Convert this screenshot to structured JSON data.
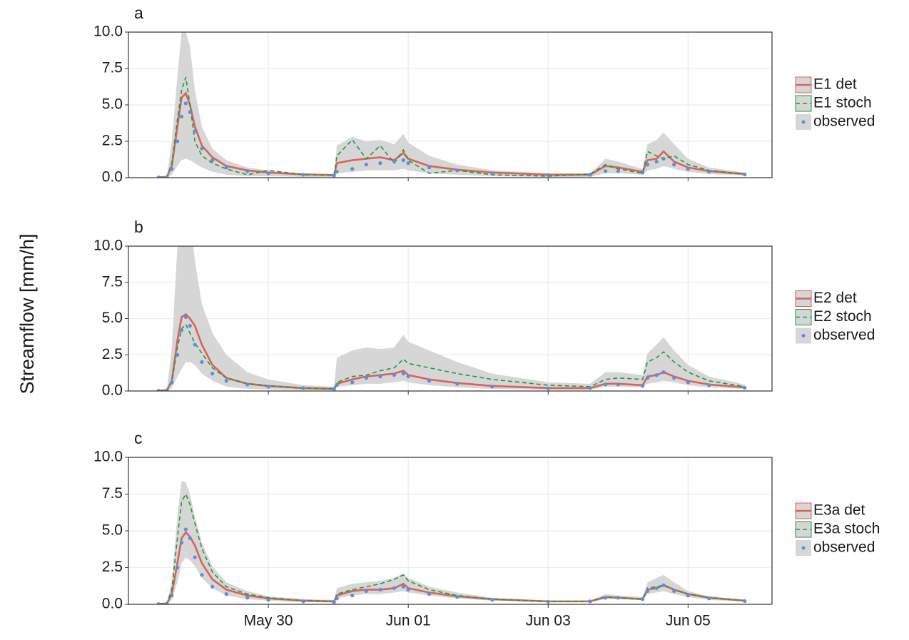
{
  "y_label": "Streamflow [mm/h]",
  "chart_data": [
    {
      "type": "line",
      "title": "a",
      "x": [
        0.43,
        0.55,
        0.62,
        0.7,
        0.76,
        0.82,
        0.88,
        0.95,
        1.05,
        1.2,
        1.4,
        1.7,
        2.0,
        2.5,
        2.94,
        2.98,
        3.2,
        3.4,
        3.6,
        3.8,
        3.93,
        4.0,
        4.3,
        4.7,
        5.2,
        6.0,
        6.6,
        6.82,
        7.0,
        7.35,
        7.42,
        7.55,
        7.65,
        7.8,
        8.0,
        8.3,
        8.81
      ],
      "xlim": [
        0,
        9.2
      ],
      "xticks": [
        2,
        4,
        6,
        8
      ],
      "ylim": [
        0,
        10
      ],
      "yticks": [
        {
          "value": 0,
          "label": "0.0"
        },
        2.5,
        {
          "value": 5,
          "label": "5.0"
        },
        7.5,
        {
          "value": 10,
          "label": "10.0"
        }
      ],
      "grid": true,
      "band": {
        "color": "#d6d6d6",
        "lower": [
          0,
          0,
          0.2,
          0.8,
          1.2,
          1.3,
          1.2,
          1.0,
          0.7,
          0.4,
          0.2,
          0.1,
          0.1,
          0.05,
          0.05,
          0.3,
          0.4,
          0.5,
          0.5,
          0.5,
          0.6,
          0.5,
          0.3,
          0.2,
          0.1,
          0.05,
          0.05,
          0.3,
          0.3,
          0.2,
          0.5,
          0.6,
          0.8,
          0.6,
          0.4,
          0.25,
          0.15
        ],
        "upper": [
          0.05,
          0.1,
          2.5,
          7,
          10,
          10,
          9,
          6,
          3.5,
          2.0,
          1.2,
          0.7,
          0.5,
          0.3,
          0.25,
          2.2,
          2.8,
          2.5,
          2.6,
          2.3,
          3.0,
          2.4,
          1.5,
          0.9,
          0.5,
          0.3,
          0.3,
          1.3,
          1.1,
          0.6,
          2.3,
          2.6,
          3.1,
          2.3,
          1.3,
          0.7,
          0.35
        ]
      },
      "series": [
        {
          "name": "E1 det",
          "color": "#d9625a",
          "style": "solid",
          "values": [
            0.02,
            0.05,
            0.8,
            3.5,
            5.5,
            5.8,
            5.0,
            3.5,
            2.2,
            1.4,
            0.8,
            0.5,
            0.35,
            0.22,
            0.18,
            1.0,
            1.2,
            1.3,
            1.4,
            1.2,
            1.7,
            1.3,
            0.8,
            0.55,
            0.35,
            0.2,
            0.2,
            0.8,
            0.7,
            0.4,
            1.2,
            1.3,
            1.8,
            1.1,
            0.7,
            0.45,
            0.25
          ]
        },
        {
          "name": "E1 stoch",
          "color": "#1f9a3c",
          "style": "dashed",
          "values": [
            0.02,
            0.05,
            1.0,
            4.0,
            6.0,
            6.9,
            5.0,
            2.5,
            1.5,
            1.0,
            0.6,
            0.2,
            0.5,
            0.2,
            0.15,
            1.5,
            2.6,
            1.3,
            2.2,
            1.0,
            1.9,
            1.2,
            0.3,
            0.5,
            0.2,
            0.1,
            0.25,
            0.9,
            0.6,
            0.3,
            1.8,
            1.5,
            1.3,
            1.5,
            0.9,
            0.5,
            0.25
          ]
        },
        {
          "name": "observed",
          "color": "#5b8de0",
          "style": "points",
          "values": [
            0.02,
            0.05,
            0.6,
            2.5,
            4.2,
            5.1,
            4.5,
            3.2,
            2.0,
            1.2,
            0.7,
            0.45,
            0.3,
            0.2,
            0.15,
            0.4,
            0.6,
            0.9,
            1.0,
            1.1,
            1.2,
            1.0,
            0.7,
            0.5,
            0.3,
            0.18,
            0.2,
            0.45,
            0.45,
            0.35,
            0.9,
            1.1,
            1.3,
            0.9,
            0.6,
            0.4,
            0.22
          ]
        }
      ]
    },
    {
      "type": "line",
      "title": "b",
      "x": [
        0.43,
        0.55,
        0.62,
        0.7,
        0.76,
        0.82,
        0.88,
        0.95,
        1.05,
        1.2,
        1.4,
        1.7,
        2.0,
        2.5,
        2.94,
        2.98,
        3.2,
        3.4,
        3.6,
        3.8,
        3.93,
        4.0,
        4.3,
        4.7,
        5.2,
        6.0,
        6.6,
        6.82,
        7.0,
        7.35,
        7.42,
        7.55,
        7.65,
        7.8,
        8.0,
        8.3,
        8.81
      ],
      "xlim": [
        0,
        9.2
      ],
      "xticks": [
        2,
        4,
        6,
        8
      ],
      "ylim": [
        0,
        10
      ],
      "yticks": [
        {
          "value": 0,
          "label": "0.0"
        },
        2.5,
        {
          "value": 5,
          "label": "5.0"
        },
        7.5,
        {
          "value": 10,
          "label": "10.0"
        }
      ],
      "grid": true,
      "band": {
        "color": "#d6d6d6",
        "lower": [
          0,
          0,
          0.2,
          1.0,
          1.5,
          2.0,
          2.0,
          1.8,
          1.2,
          0.7,
          0.3,
          0.15,
          0.1,
          0.05,
          0.05,
          0.3,
          0.4,
          0.5,
          0.5,
          0.6,
          0.7,
          0.6,
          0.4,
          0.25,
          0.15,
          0.08,
          0.08,
          0.3,
          0.3,
          0.25,
          0.5,
          0.6,
          0.7,
          0.6,
          0.4,
          0.25,
          0.15
        ],
        "upper": [
          0.05,
          0.1,
          3,
          10,
          14,
          14,
          12,
          9,
          6,
          4,
          2.5,
          1.3,
          0.8,
          0.4,
          0.3,
          2.3,
          2.8,
          3.0,
          2.9,
          3.0,
          3.9,
          3.4,
          2.8,
          2.0,
          1.2,
          0.6,
          0.5,
          1.3,
          1.3,
          1.1,
          2.6,
          3.2,
          3.7,
          2.8,
          1.8,
          1.0,
          0.45
        ]
      },
      "series": [
        {
          "name": "E2 det",
          "color": "#d9625a",
          "style": "solid",
          "values": [
            0.02,
            0.05,
            0.7,
            3.5,
            5.1,
            5.3,
            5.0,
            4.5,
            3.2,
            1.8,
            0.9,
            0.5,
            0.35,
            0.2,
            0.15,
            0.5,
            0.8,
            1.0,
            1.1,
            1.2,
            1.4,
            1.1,
            0.8,
            0.55,
            0.35,
            0.2,
            0.2,
            0.5,
            0.5,
            0.4,
            1.0,
            1.1,
            1.3,
            1.0,
            0.7,
            0.45,
            0.25
          ]
        },
        {
          "name": "E2 stoch",
          "color": "#1f9a3c",
          "style": "dashed",
          "values": [
            0.02,
            0.05,
            0.6,
            3.0,
            4.3,
            4.6,
            4.0,
            3.3,
            2.6,
            1.6,
            0.9,
            0.5,
            0.35,
            0.2,
            0.15,
            0.6,
            1.0,
            1.1,
            1.4,
            1.6,
            2.2,
            1.9,
            1.6,
            1.2,
            0.8,
            0.4,
            0.3,
            0.8,
            0.9,
            0.8,
            2.0,
            2.3,
            2.7,
            2.0,
            1.3,
            0.7,
            0.3
          ]
        },
        {
          "name": "observed",
          "color": "#5b8de0",
          "style": "points",
          "values": [
            0.02,
            0.05,
            0.6,
            2.5,
            4.2,
            5.1,
            4.5,
            3.2,
            2.0,
            1.2,
            0.7,
            0.45,
            0.3,
            0.2,
            0.15,
            0.4,
            0.6,
            0.9,
            1.0,
            1.1,
            1.2,
            1.0,
            0.7,
            0.5,
            0.3,
            0.18,
            0.2,
            0.45,
            0.45,
            0.35,
            0.9,
            1.1,
            1.3,
            0.9,
            0.6,
            0.4,
            0.22
          ]
        }
      ]
    },
    {
      "type": "line",
      "title": "c",
      "x": [
        0.43,
        0.55,
        0.62,
        0.7,
        0.76,
        0.82,
        0.88,
        0.95,
        1.05,
        1.2,
        1.4,
        1.7,
        2.0,
        2.5,
        2.94,
        2.98,
        3.2,
        3.4,
        3.6,
        3.8,
        3.93,
        4.0,
        4.3,
        4.7,
        5.2,
        6.0,
        6.6,
        6.82,
        7.0,
        7.35,
        7.42,
        7.55,
        7.65,
        7.8,
        8.0,
        8.3,
        8.81
      ],
      "xlim": [
        0,
        9.2
      ],
      "xticks": [
        {
          "value": 2,
          "label": "May 30"
        },
        {
          "value": 4,
          "label": "Jun 01"
        },
        {
          "value": 6,
          "label": "Jun 03"
        },
        {
          "value": 8,
          "label": "Jun 05"
        }
      ],
      "ylim": [
        0,
        10
      ],
      "yticks": [
        {
          "value": 0,
          "label": "0.0"
        },
        2.5,
        {
          "value": 5,
          "label": "5.0"
        },
        7.5,
        {
          "value": 10,
          "label": "10.0"
        }
      ],
      "grid": true,
      "band": {
        "color": "#d6d6d6",
        "lower": [
          0,
          0,
          0.3,
          1.5,
          2.8,
          3.2,
          3.0,
          2.6,
          1.8,
          1.1,
          0.6,
          0.35,
          0.25,
          0.15,
          0.12,
          0.4,
          0.6,
          0.7,
          0.7,
          0.8,
          0.9,
          0.8,
          0.6,
          0.4,
          0.25,
          0.15,
          0.15,
          0.35,
          0.35,
          0.3,
          0.7,
          0.8,
          0.9,
          0.7,
          0.5,
          0.3,
          0.18
        ],
        "upper": [
          0.05,
          0.1,
          1.6,
          6.0,
          8.4,
          8.3,
          7.5,
          6.0,
          4.2,
          2.6,
          1.5,
          0.9,
          0.55,
          0.35,
          0.3,
          1.1,
          1.4,
          1.5,
          1.6,
          1.8,
          2.1,
          1.8,
          1.2,
          0.8,
          0.45,
          0.25,
          0.25,
          0.7,
          0.6,
          0.5,
          1.5,
          1.8,
          2.0,
          1.5,
          0.9,
          0.55,
          0.3
        ]
      },
      "series": [
        {
          "name": "E3a det",
          "color": "#d9625a",
          "style": "solid",
          "values": [
            0.02,
            0.05,
            0.7,
            2.8,
            4.5,
            4.9,
            4.6,
            4.0,
            2.8,
            1.7,
            1.0,
            0.6,
            0.4,
            0.25,
            0.2,
            0.6,
            0.9,
            1.0,
            1.0,
            1.1,
            1.4,
            1.1,
            0.8,
            0.55,
            0.35,
            0.2,
            0.2,
            0.5,
            0.45,
            0.35,
            1.0,
            1.1,
            1.3,
            1.0,
            0.7,
            0.45,
            0.25
          ]
        },
        {
          "name": "E3a stoch",
          "color": "#1f9a3c",
          "style": "dashed",
          "values": [
            0.02,
            0.05,
            1.0,
            4.5,
            7.0,
            7.5,
            6.8,
            5.5,
            3.8,
            2.2,
            1.2,
            0.7,
            0.45,
            0.25,
            0.2,
            0.7,
            1.0,
            1.2,
            1.4,
            1.7,
            2.0,
            1.6,
            1.0,
            0.6,
            0.35,
            0.2,
            0.2,
            0.5,
            0.45,
            0.35,
            1.1,
            1.2,
            1.3,
            1.0,
            0.7,
            0.45,
            0.25
          ]
        },
        {
          "name": "observed",
          "color": "#5b8de0",
          "style": "points",
          "values": [
            0.02,
            0.05,
            0.6,
            2.5,
            4.2,
            5.1,
            4.5,
            3.2,
            2.0,
            1.2,
            0.7,
            0.45,
            0.3,
            0.2,
            0.15,
            0.4,
            0.6,
            0.9,
            1.0,
            1.1,
            1.2,
            1.0,
            0.7,
            0.5,
            0.3,
            0.18,
            0.2,
            0.45,
            0.45,
            0.35,
            0.9,
            1.1,
            1.3,
            0.9,
            0.6,
            0.4,
            0.22
          ]
        }
      ]
    }
  ]
}
